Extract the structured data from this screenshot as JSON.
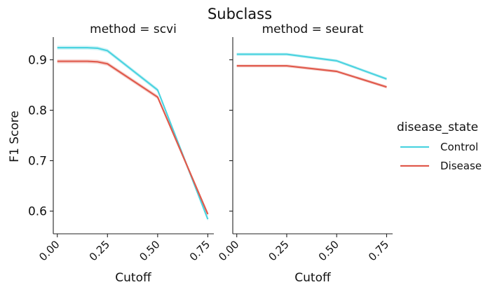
{
  "chart_data": {
    "type": "line",
    "title": "Subclass",
    "ylabel": "F1 Score",
    "xlabel": "Cutoff",
    "ylim": [
      0.555,
      0.945
    ],
    "xlim": [
      -0.02,
      0.78
    ],
    "x_ticks": [
      0.0,
      0.25,
      0.5,
      0.75
    ],
    "x_tick_labels": [
      "0.00",
      "0.25",
      "0.50",
      "0.75"
    ],
    "y_ticks": [
      0.6,
      0.7,
      0.8,
      0.9
    ],
    "y_tick_labels": [
      "0.6",
      "0.7",
      "0.8",
      "0.9"
    ],
    "grid": false,
    "legend": {
      "title": "disease_state",
      "placement": "right",
      "entries": [
        "Control",
        "Disease"
      ]
    },
    "colors": {
      "Control": "#4cd3e0",
      "Disease": "#e05a4c"
    },
    "panels": [
      {
        "title": "method = scvi",
        "x": [
          0.0,
          0.05,
          0.1,
          0.15,
          0.2,
          0.25,
          0.5,
          0.75
        ],
        "series": [
          {
            "name": "Control",
            "values": [
              0.924,
              0.924,
              0.924,
              0.924,
              0.923,
              0.918,
              0.84,
              0.584
            ],
            "ci": 0.004
          },
          {
            "name": "Disease",
            "values": [
              0.897,
              0.897,
              0.897,
              0.897,
              0.896,
              0.892,
              0.826,
              0.594
            ],
            "ci": 0.004
          }
        ]
      },
      {
        "title": "method = seurat",
        "x": [
          0.0,
          0.05,
          0.1,
          0.15,
          0.2,
          0.25,
          0.5,
          0.75
        ],
        "series": [
          {
            "name": "Control",
            "values": [
              0.911,
              0.911,
              0.911,
              0.911,
              0.911,
              0.911,
              0.898,
              0.862
            ],
            "ci": 0.003
          },
          {
            "name": "Disease",
            "values": [
              0.888,
              0.888,
              0.888,
              0.888,
              0.888,
              0.888,
              0.877,
              0.846
            ],
            "ci": 0.003
          }
        ]
      }
    ]
  }
}
